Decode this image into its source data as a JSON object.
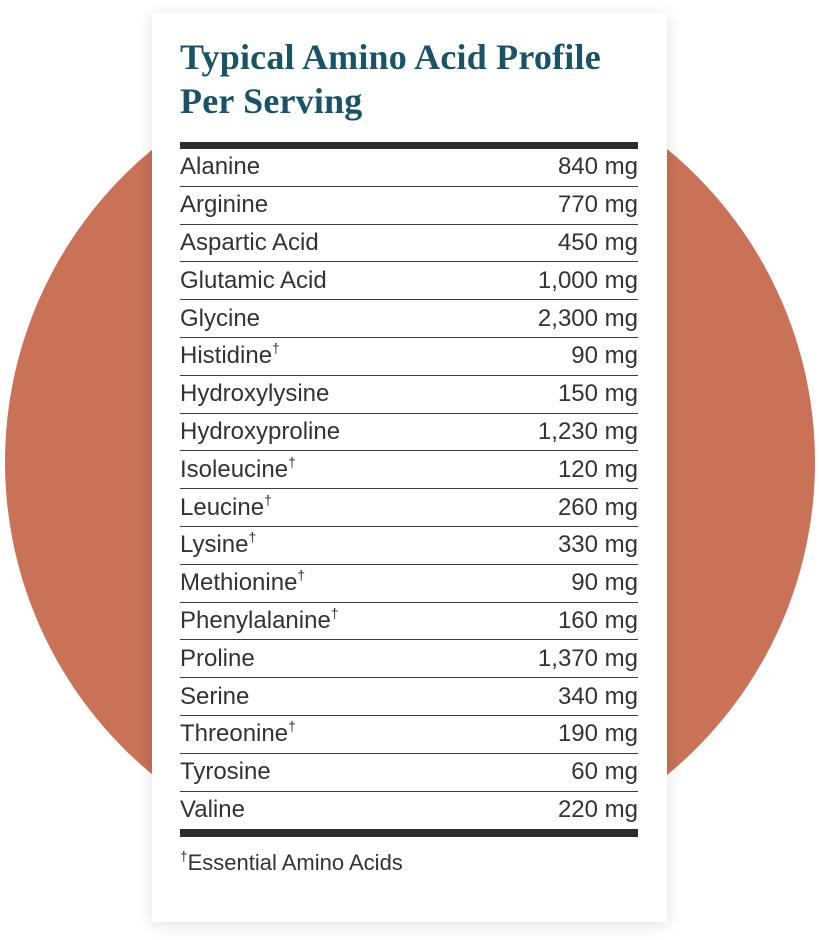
{
  "colors": {
    "page_background": "#FFFFFF",
    "card_background": "#FFFFFF",
    "circle_accent": "#C97257",
    "title_text": "#1A5366",
    "body_text": "#333333",
    "thick_rule": "#2D2D2D",
    "row_separator": "#3B3B3B"
  },
  "card": {
    "title_lines": [
      "Typical Amino Acid Profile",
      "Per Serving"
    ],
    "rows": [
      {
        "name": "Alanine",
        "essential": false,
        "amount": "840 mg"
      },
      {
        "name": "Arginine",
        "essential": false,
        "amount": "770 mg"
      },
      {
        "name": "Aspartic Acid",
        "essential": false,
        "amount": "450 mg"
      },
      {
        "name": "Glutamic Acid",
        "essential": false,
        "amount": "1,000 mg"
      },
      {
        "name": "Glycine",
        "essential": false,
        "amount": "2,300 mg"
      },
      {
        "name": "Histidine",
        "essential": true,
        "amount": "90 mg"
      },
      {
        "name": "Hydroxylysine",
        "essential": false,
        "amount": "150 mg"
      },
      {
        "name": "Hydroxyproline",
        "essential": false,
        "amount": "1,230 mg"
      },
      {
        "name": "Isoleucine",
        "essential": true,
        "amount": "120 mg"
      },
      {
        "name": "Leucine",
        "essential": true,
        "amount": "260 mg"
      },
      {
        "name": "Lysine",
        "essential": true,
        "amount": "330 mg"
      },
      {
        "name": "Methionine",
        "essential": true,
        "amount": "90 mg"
      },
      {
        "name": "Phenylalanine",
        "essential": true,
        "amount": "160 mg"
      },
      {
        "name": "Proline",
        "essential": false,
        "amount": "1,370 mg"
      },
      {
        "name": "Serine",
        "essential": false,
        "amount": "340 mg"
      },
      {
        "name": "Threonine",
        "essential": true,
        "amount": "190 mg"
      },
      {
        "name": "Tyrosine",
        "essential": false,
        "amount": "60 mg"
      },
      {
        "name": "Valine",
        "essential": false,
        "amount": "220 mg"
      }
    ],
    "footnote": {
      "dagger": "†",
      "text": "Essential Amino Acids"
    }
  }
}
